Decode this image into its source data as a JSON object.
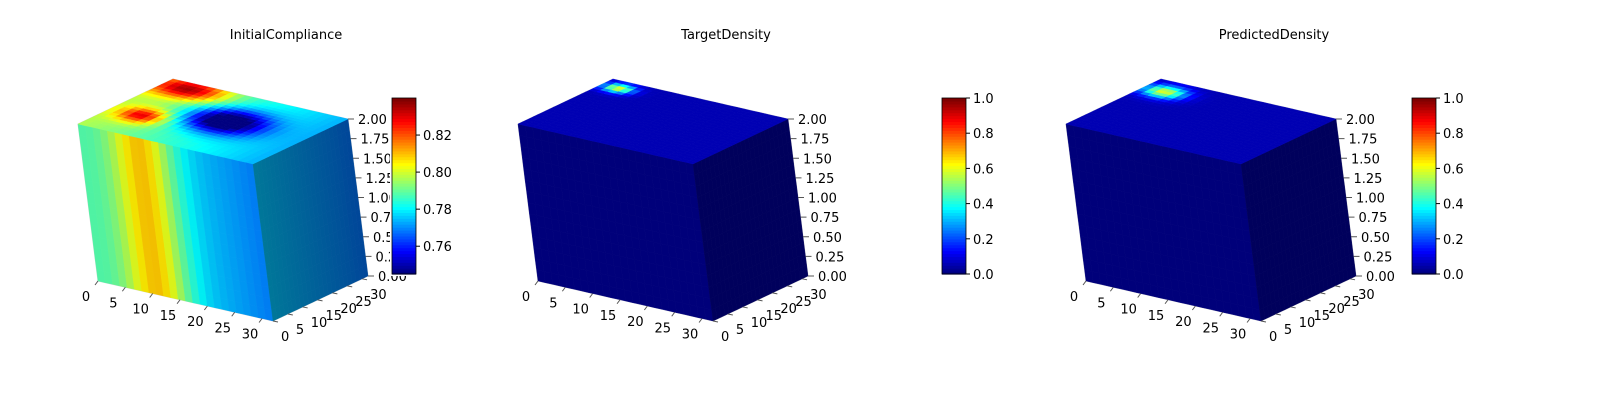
{
  "chart_data": [
    {
      "type": "3d-voxel",
      "title": "InitialCompliance",
      "x_ticks": [
        "0",
        "5",
        "10",
        "15",
        "20",
        "25",
        "30"
      ],
      "y_ticks": [
        "0",
        "5",
        "10",
        "15",
        "20",
        "25",
        "30"
      ],
      "z_ticks": [
        "0.00",
        "0.25",
        "0.50",
        "0.75",
        "1.00",
        "1.25",
        "1.50",
        "1.75",
        "2.00"
      ],
      "xlim": [
        0,
        32
      ],
      "ylim": [
        0,
        32
      ],
      "zlim": [
        0,
        2
      ],
      "colormap": "jet",
      "colorbar": {
        "min": 0.745,
        "max": 0.84,
        "ticks": [
          "0.76",
          "0.78",
          "0.80",
          "0.82"
        ]
      },
      "grid": true
    },
    {
      "type": "3d-voxel",
      "title": "TargetDensity",
      "x_ticks": [
        "0",
        "5",
        "10",
        "15",
        "20",
        "25",
        "30"
      ],
      "y_ticks": [
        "0",
        "5",
        "10",
        "15",
        "20",
        "25",
        "30"
      ],
      "z_ticks": [
        "0.00",
        "0.25",
        "0.50",
        "0.75",
        "1.00",
        "1.25",
        "1.50",
        "1.75",
        "2.00"
      ],
      "xlim": [
        0,
        32
      ],
      "ylim": [
        0,
        32
      ],
      "zlim": [
        0,
        2
      ],
      "colormap": "jet",
      "colorbar": {
        "min": 0.0,
        "max": 1.0,
        "ticks": [
          "0.0",
          "0.2",
          "0.4",
          "0.6",
          "0.8",
          "1.0"
        ]
      },
      "grid": true
    },
    {
      "type": "3d-voxel",
      "title": "PredictedDensity",
      "x_ticks": [
        "0",
        "5",
        "10",
        "15",
        "20",
        "25",
        "30"
      ],
      "y_ticks": [
        "0",
        "5",
        "10",
        "15",
        "20",
        "25",
        "30"
      ],
      "z_ticks": [
        "0.00",
        "0.25",
        "0.50",
        "0.75",
        "1.00",
        "1.25",
        "1.50",
        "1.75",
        "2.00"
      ],
      "xlim": [
        0,
        32
      ],
      "ylim": [
        0,
        32
      ],
      "zlim": [
        0,
        2
      ],
      "colormap": "jet",
      "colorbar": {
        "min": 0.0,
        "max": 1.0,
        "ticks": [
          "0.0",
          "0.2",
          "0.4",
          "0.6",
          "0.8",
          "1.0"
        ]
      },
      "grid": true
    }
  ],
  "colors": {
    "pane": "#f2f2f2",
    "pane_grid": "#e3e3e3",
    "dark_volume": "#00007a"
  }
}
